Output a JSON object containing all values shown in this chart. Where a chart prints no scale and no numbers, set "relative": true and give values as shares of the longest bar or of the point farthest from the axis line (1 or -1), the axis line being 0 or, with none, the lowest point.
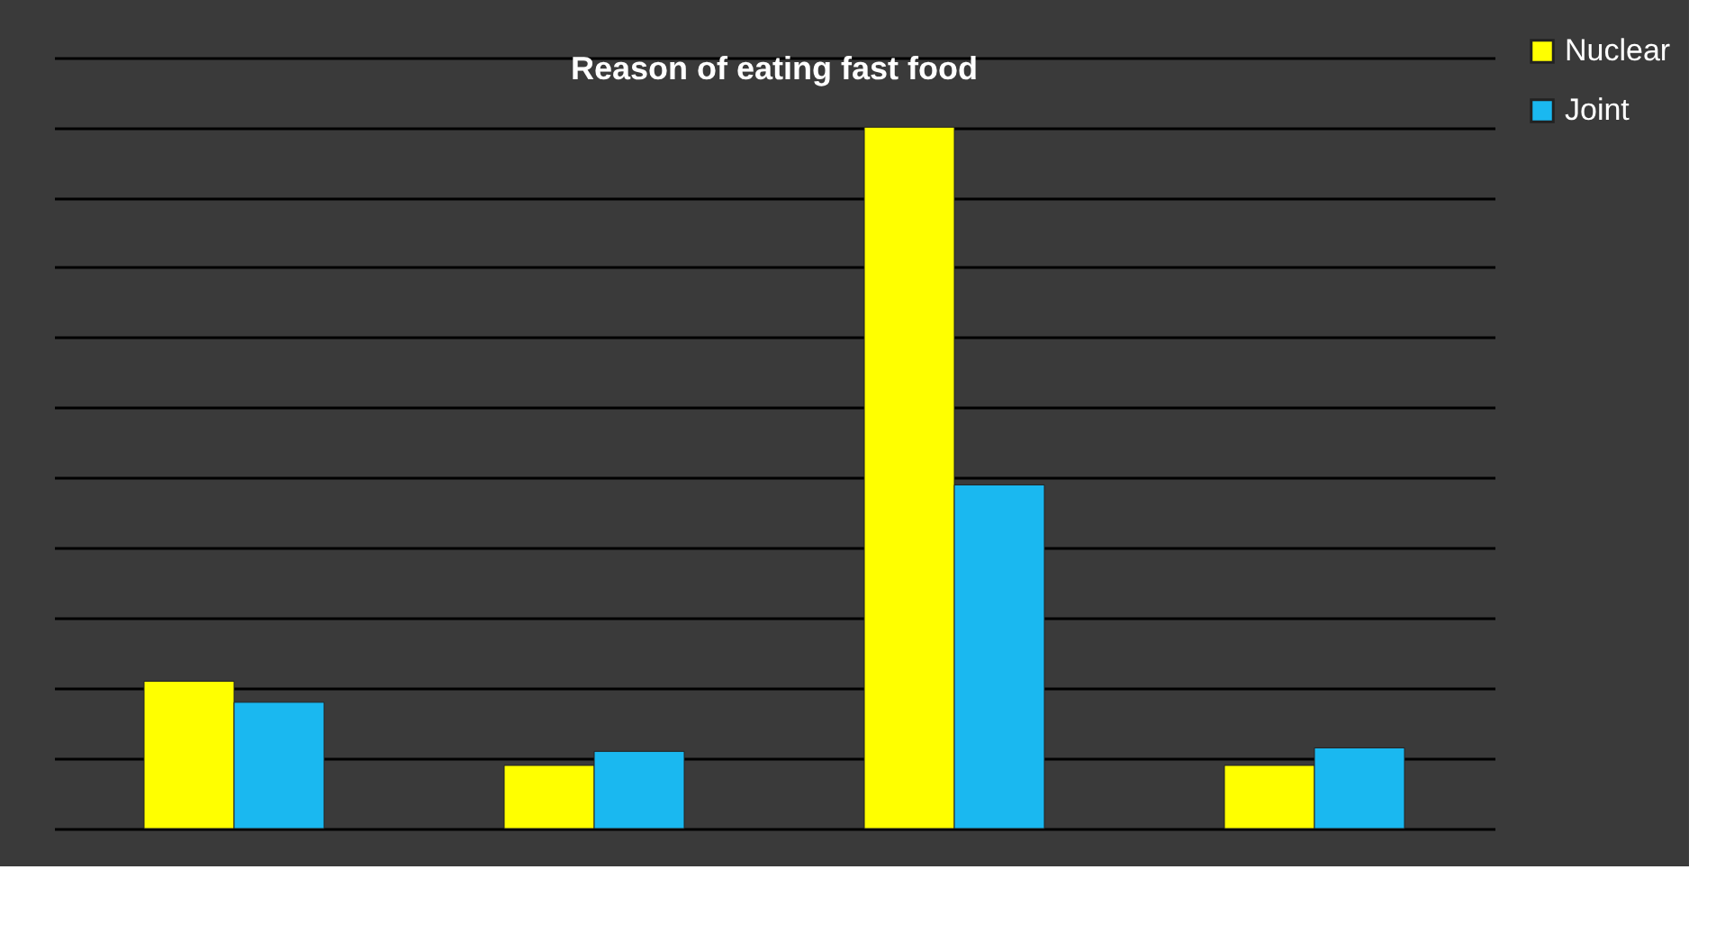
{
  "chart_data": {
    "type": "bar",
    "title": "Reason of eating fast food",
    "relative": true,
    "categories": [
      null,
      null,
      null,
      null
    ],
    "series": [
      {
        "name": "Nuclear",
        "color": "#ffff00",
        "values": [
          0.21,
          0.09,
          1,
          0.09
        ]
      },
      {
        "name": "Joint",
        "color": "#1ab8f0",
        "values": [
          0.18,
          0.11,
          0.49,
          0.115
        ]
      }
    ],
    "grid": "y",
    "legend": "right",
    "tick_labels": false
  }
}
